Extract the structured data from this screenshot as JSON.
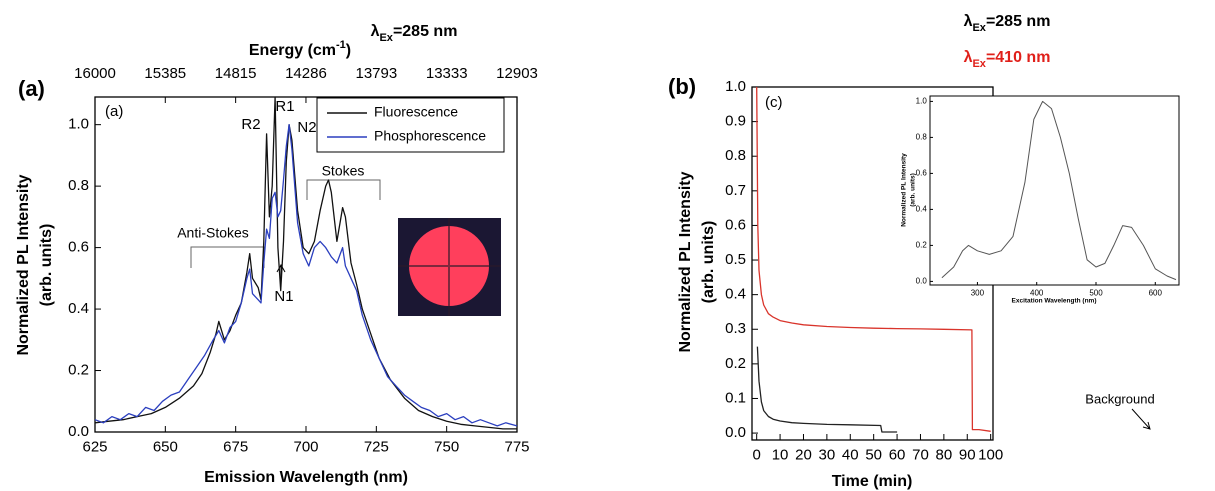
{
  "chart_data": [
    {
      "type": "line",
      "title": {
        "symbol": "λ",
        "sub": "Ex",
        "rest": "=285 nm"
      },
      "x2label": {
        "text": "Energy (cm",
        "sup": "-1",
        "end": ")"
      },
      "xlabel": "Emission Wavelength (nm)",
      "ylabel": [
        "Normalized PL Intensity",
        "(arb. units)"
      ],
      "annotations": [
        "(a)",
        "(a)",
        "R2",
        "R1",
        "N2",
        "N1",
        "Anti-Stokes",
        "Stokes"
      ],
      "xlim": [
        625,
        775
      ],
      "ylim": [
        0,
        1.09
      ],
      "xticks": [
        625,
        650,
        675,
        700,
        725,
        750,
        775
      ],
      "x2ticks": [
        16000,
        15385,
        14815,
        14286,
        13793,
        13333,
        12903
      ],
      "yticks": [
        {
          "value": 0,
          "label": "0.0"
        },
        0.2,
        0.4,
        0.6,
        0.8,
        {
          "value": 1,
          "label": "1.0"
        }
      ],
      "legend": "upper right",
      "series": [
        {
          "name": "Fluorescence",
          "color": "#111111",
          "x": [
            625,
            630,
            635,
            640,
            645,
            650,
            655,
            660,
            663,
            666,
            668,
            669,
            671,
            673,
            675,
            677,
            679,
            680,
            681,
            683,
            684,
            685,
            686,
            687,
            688,
            689,
            690,
            691,
            692,
            693,
            694,
            695,
            697,
            699,
            701,
            703,
            705,
            707,
            708,
            709,
            711,
            713,
            714,
            716,
            718,
            720,
            723,
            726,
            730,
            735,
            740,
            745,
            750,
            755,
            760,
            765,
            770,
            775
          ],
          "values": [
            0.03,
            0.035,
            0.04,
            0.05,
            0.06,
            0.08,
            0.11,
            0.15,
            0.19,
            0.26,
            0.32,
            0.36,
            0.3,
            0.33,
            0.38,
            0.42,
            0.52,
            0.58,
            0.5,
            0.47,
            0.43,
            0.62,
            0.97,
            0.7,
            0.8,
            1.09,
            0.6,
            0.46,
            0.62,
            0.88,
            1.0,
            0.95,
            0.72,
            0.6,
            0.58,
            0.62,
            0.72,
            0.8,
            0.82,
            0.78,
            0.62,
            0.73,
            0.7,
            0.55,
            0.48,
            0.4,
            0.32,
            0.24,
            0.17,
            0.11,
            0.07,
            0.05,
            0.035,
            0.025,
            0.02,
            0.015,
            0.01,
            0.01
          ]
        },
        {
          "name": "Phosphorescence",
          "color": "#2b3fbf",
          "x": [
            625,
            628,
            631,
            634,
            637,
            640,
            643,
            646,
            649,
            652,
            655,
            658,
            661,
            664,
            667,
            669,
            671,
            673,
            675,
            677,
            679,
            680,
            681,
            683,
            684,
            685,
            686,
            687,
            688,
            689,
            690,
            691,
            692,
            693,
            694,
            695,
            697,
            699,
            701,
            703,
            705,
            707,
            709,
            711,
            713,
            714,
            716,
            718,
            720,
            723,
            726,
            729,
            732,
            735,
            738,
            741,
            744,
            747,
            750,
            753,
            756,
            759,
            762,
            765,
            768,
            771,
            775
          ],
          "values": [
            0.04,
            0.03,
            0.05,
            0.04,
            0.06,
            0.05,
            0.08,
            0.07,
            0.1,
            0.12,
            0.13,
            0.17,
            0.21,
            0.25,
            0.3,
            0.33,
            0.29,
            0.34,
            0.36,
            0.42,
            0.5,
            0.53,
            0.45,
            0.43,
            0.42,
            0.55,
            0.66,
            0.63,
            0.76,
            0.78,
            0.7,
            0.72,
            0.82,
            0.93,
            1.0,
            0.92,
            0.68,
            0.58,
            0.54,
            0.6,
            0.62,
            0.6,
            0.57,
            0.55,
            0.6,
            0.54,
            0.5,
            0.46,
            0.38,
            0.3,
            0.24,
            0.18,
            0.15,
            0.12,
            0.1,
            0.08,
            0.07,
            0.05,
            0.06,
            0.04,
            0.05,
            0.03,
            0.04,
            0.03,
            0.02,
            0.03,
            0.02
          ]
        }
      ]
    },
    {
      "type": "line",
      "titles": [
        {
          "symbol": "λ",
          "sub": "Ex",
          "rest": "=285 nm"
        },
        {
          "symbol": "λ",
          "sub": "Ex",
          "rest": "=410 nm"
        }
      ],
      "xlabel": "Time (min)",
      "ylabel": [
        "Normalized PL Intensity",
        "(arb. units)"
      ],
      "annotations": [
        "(b)",
        "(c)",
        "Background"
      ],
      "xlim": [
        -2,
        101
      ],
      "ylim": [
        -0.02,
        1.0
      ],
      "xticks": [
        0,
        10,
        20,
        30,
        40,
        50,
        60,
        70,
        80,
        90,
        100
      ],
      "yticks": [
        {
          "value": 0,
          "label": "0.0"
        },
        0.1,
        0.2,
        0.3,
        0.4,
        0.5,
        0.6,
        0.7,
        0.8,
        0.9,
        {
          "value": 1,
          "label": "1.0"
        }
      ],
      "series": [
        {
          "color": "#222222",
          "x": [
            0.3,
            1,
            2,
            3,
            5,
            7,
            10,
            15,
            20,
            30,
            40,
            53,
            53.5,
            60
          ],
          "values": [
            0.25,
            0.15,
            0.09,
            0.065,
            0.048,
            0.04,
            0.035,
            0.03,
            0.028,
            0.025,
            0.024,
            0.022,
            0.003,
            0.003
          ]
        },
        {
          "color": "#d9342b",
          "x": [
            0,
            0.5,
            1,
            2,
            3,
            5,
            7,
            10,
            15,
            20,
            30,
            40,
            50,
            60,
            70,
            80,
            92,
            92.2,
            95,
            100
          ],
          "values": [
            1.0,
            0.6,
            0.47,
            0.4,
            0.37,
            0.345,
            0.335,
            0.325,
            0.318,
            0.313,
            0.308,
            0.305,
            0.303,
            0.302,
            0.301,
            0.3,
            0.298,
            0.01,
            0.01,
            0.005
          ]
        }
      ]
    },
    {
      "type": "line",
      "xlabel": "Excitation Wavelength (nm)",
      "ylabel": [
        "Normalized PL Intensity",
        "(arb. units)"
      ],
      "xlim": [
        220,
        640
      ],
      "ylim": [
        -0.02,
        1.03
      ],
      "xticks": [
        300,
        400,
        500,
        600
      ],
      "yticks": [
        {
          "value": 0,
          "label": "0.0"
        },
        0.2,
        0.4,
        0.6,
        0.8,
        {
          "value": 1,
          "label": "1.0"
        }
      ],
      "series": [
        {
          "color": "#555555",
          "x": [
            240,
            260,
            275,
            285,
            300,
            320,
            340,
            360,
            380,
            395,
            410,
            425,
            440,
            455,
            470,
            485,
            500,
            515,
            530,
            545,
            560,
            580,
            600,
            620,
            635
          ],
          "values": [
            0.02,
            0.08,
            0.17,
            0.2,
            0.17,
            0.15,
            0.17,
            0.25,
            0.55,
            0.9,
            1.0,
            0.96,
            0.8,
            0.6,
            0.35,
            0.12,
            0.08,
            0.1,
            0.2,
            0.31,
            0.3,
            0.2,
            0.07,
            0.03,
            0.01
          ]
        }
      ]
    }
  ]
}
